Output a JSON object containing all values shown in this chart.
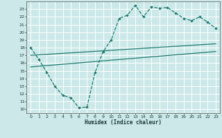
{
  "xlabel": "Humidex (Indice chaleur)",
  "xlim": [
    -0.5,
    23.5
  ],
  "ylim": [
    9.5,
    24.0
  ],
  "xticks": [
    0,
    1,
    2,
    3,
    4,
    5,
    6,
    7,
    8,
    9,
    10,
    11,
    12,
    13,
    14,
    15,
    16,
    17,
    18,
    19,
    20,
    21,
    22,
    23
  ],
  "yticks": [
    10,
    11,
    12,
    13,
    14,
    15,
    16,
    17,
    18,
    19,
    20,
    21,
    22,
    23
  ],
  "bg_color": "#cce8e8",
  "line_color": "#1a7a6e",
  "grid_color": "#ffffff",
  "curve_x": [
    0,
    1,
    2,
    3,
    4,
    5,
    6,
    7,
    8,
    9,
    10,
    11,
    12,
    13,
    14,
    15,
    16,
    17,
    18,
    19,
    20,
    21,
    22,
    23
  ],
  "curve_y": [
    18.0,
    16.5,
    14.8,
    13.0,
    11.8,
    11.5,
    10.2,
    10.3,
    14.8,
    17.5,
    19.0,
    21.8,
    22.2,
    23.5,
    22.0,
    23.3,
    23.1,
    23.2,
    22.5,
    21.8,
    21.5,
    22.0,
    21.3,
    20.5
  ],
  "line1_x": [
    0,
    23
  ],
  "line1_y": [
    17.0,
    18.5
  ],
  "line2_x": [
    0,
    23
  ],
  "line2_y": [
    15.5,
    17.5
  ]
}
